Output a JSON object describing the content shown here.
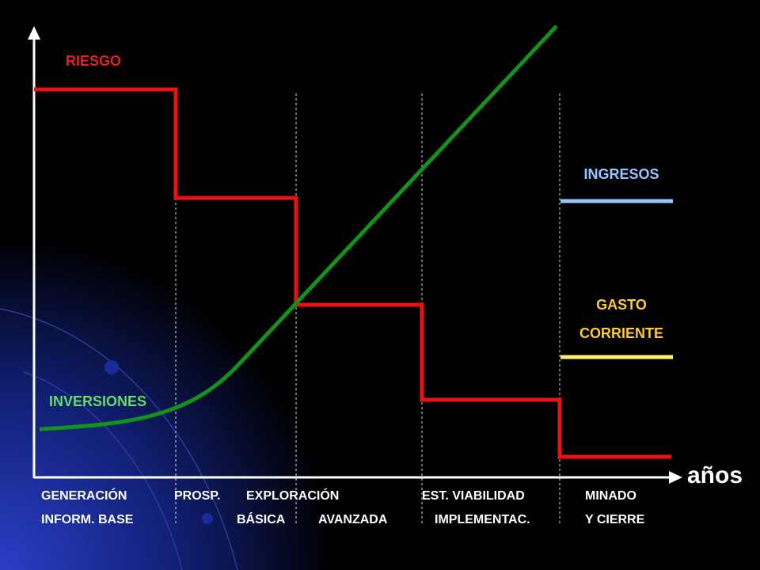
{
  "labels": {
    "riesgo": "RIESGO",
    "inversiones": "INVERSIONES",
    "ingresos": "INGRESOS",
    "gasto": [
      "GASTO",
      "CORRIENTE"
    ],
    "axis": "años"
  },
  "phases": {
    "row1": [
      "GENERACIÓN",
      "PROSP.",
      "EXPLORACIÓN",
      "EST. VIABILIDAD",
      "MINADO"
    ],
    "row2": [
      "INFORM. BASE",
      "BÁSICA",
      "AVANZADA",
      "IMPLEMENTAC.",
      "Y CIERRE"
    ]
  }
}
